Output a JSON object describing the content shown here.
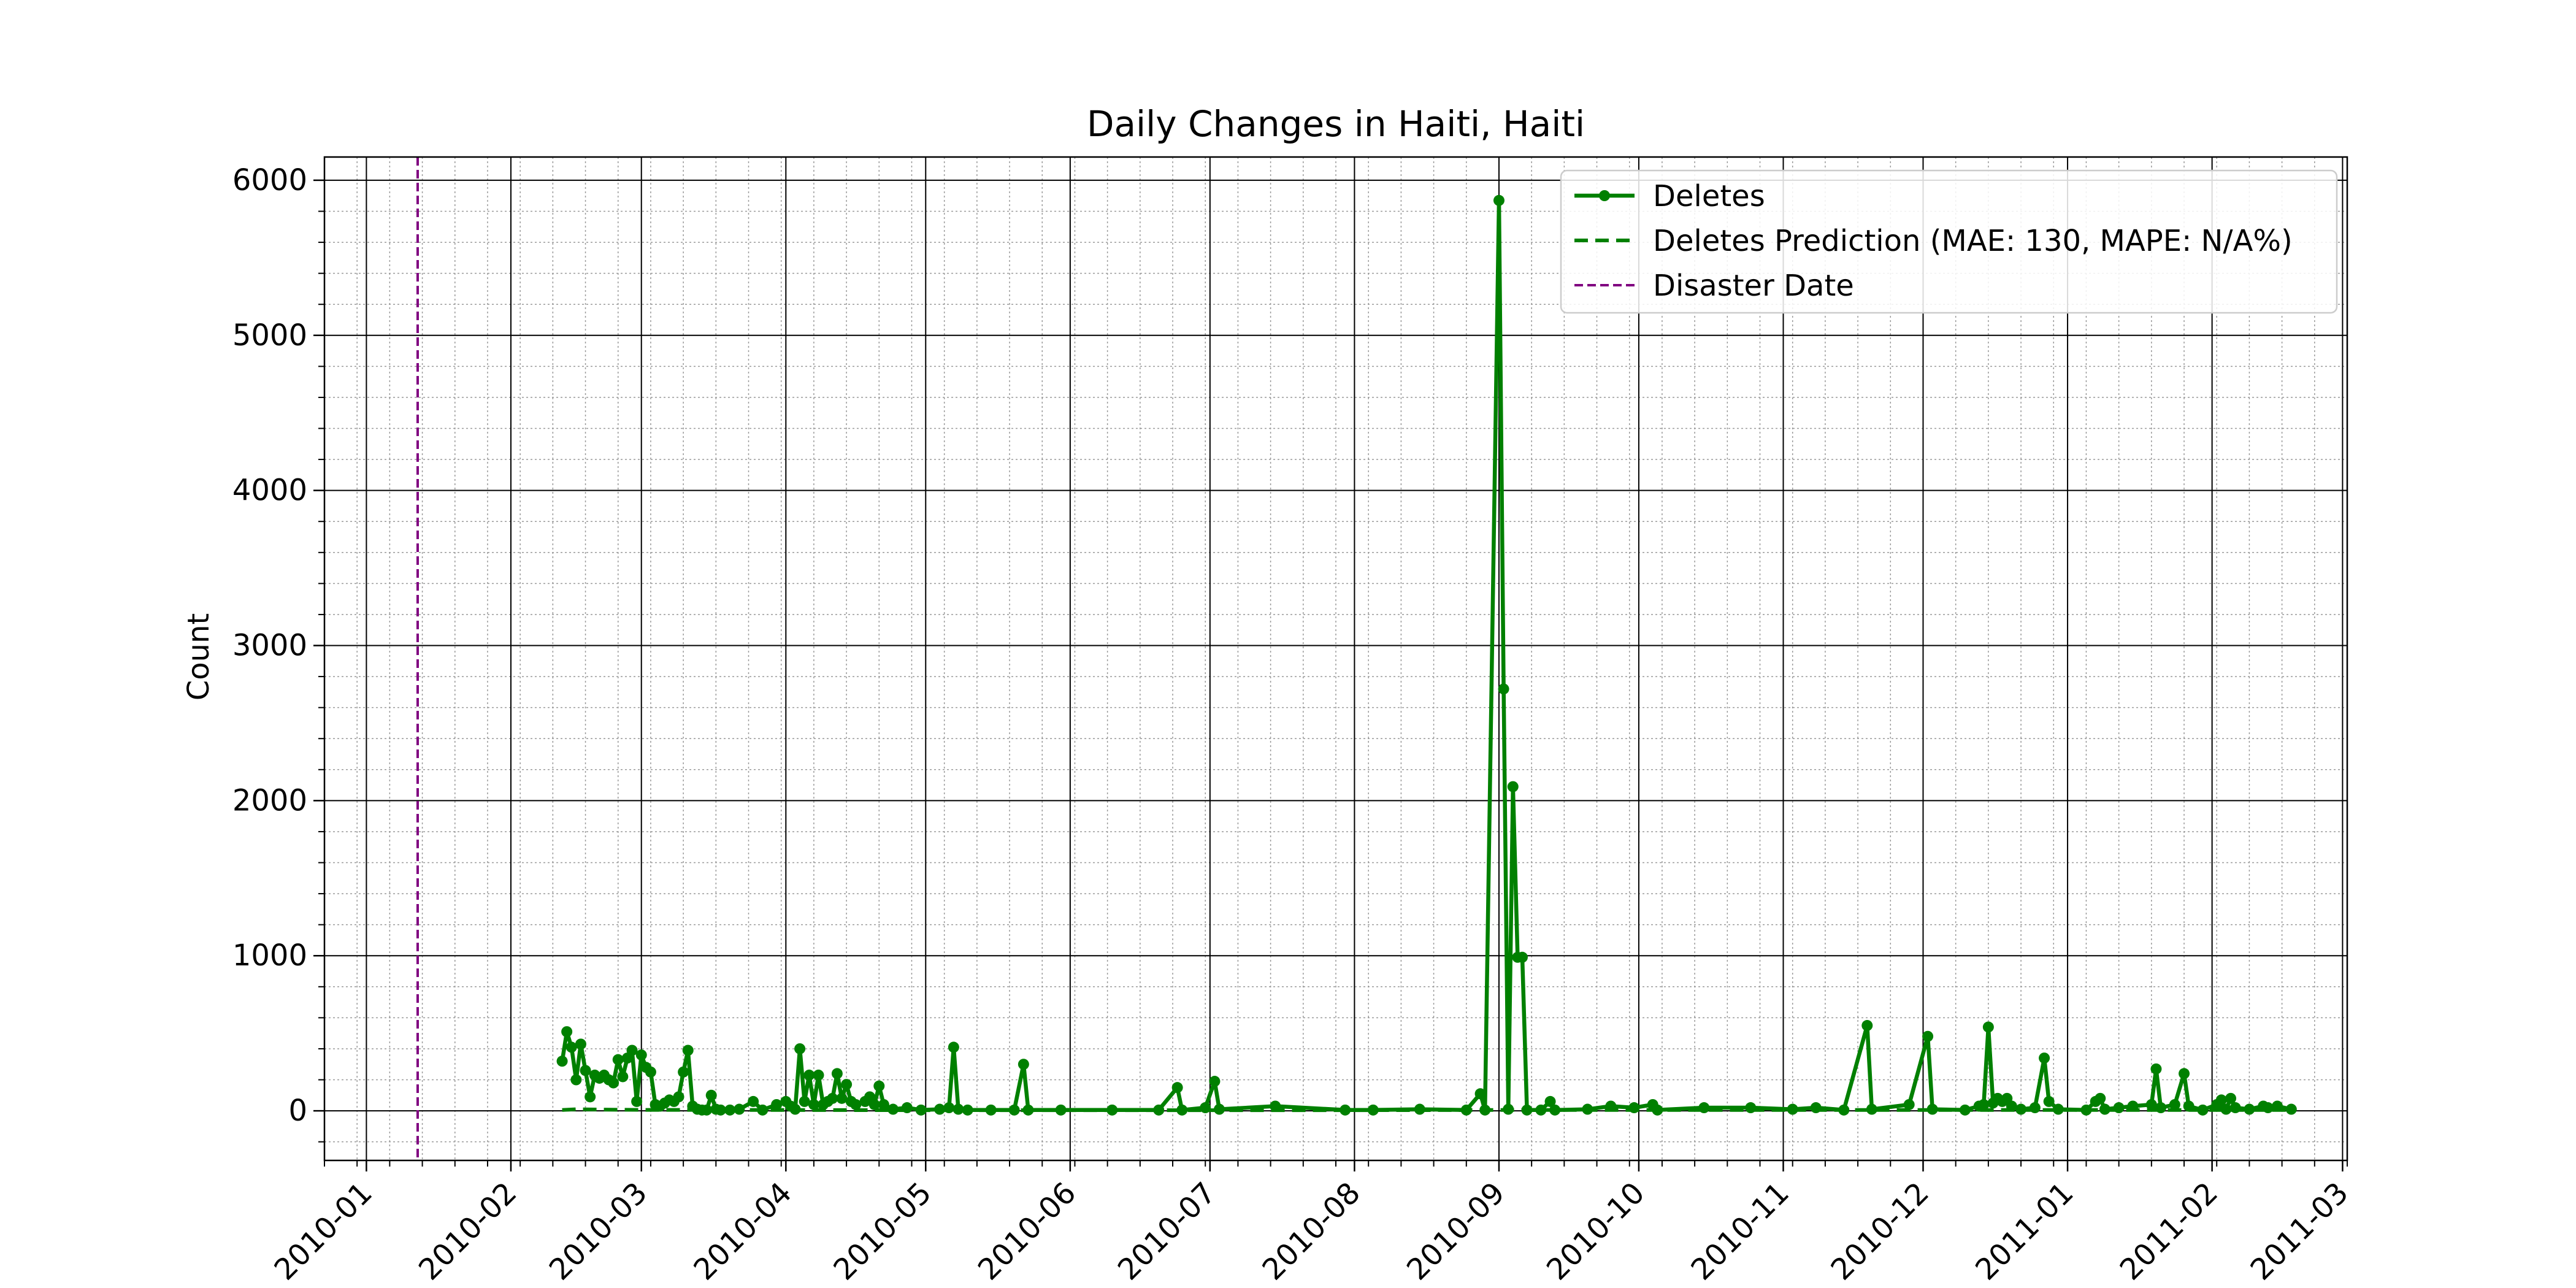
{
  "chart_data": {
    "type": "line",
    "title": "Daily Changes in Haiti, Haiti",
    "xlabel": "",
    "ylabel": "Count",
    "x_ticks": [
      "2010-01",
      "2010-02",
      "2010-03",
      "2010-04",
      "2010-05",
      "2010-06",
      "2010-07",
      "2010-08",
      "2010-09",
      "2010-10",
      "2010-11",
      "2010-12",
      "2011-01",
      "2011-02",
      "2011-03"
    ],
    "y_ticks": [
      0,
      1000,
      2000,
      3000,
      4000,
      5000,
      6000
    ],
    "xlim": [
      "2009-12-23",
      "2011-03-02"
    ],
    "ylim": [
      -320,
      6150
    ],
    "grid": {
      "major": true,
      "minor": true
    },
    "legend_position": "top-right",
    "colors": {
      "series": "#008000",
      "disaster": "#800080",
      "grid_major": "#000000",
      "grid_minor": "#9a9a9a"
    },
    "disaster_date": "2010-01-12",
    "series": [
      {
        "name": "Deletes",
        "style": "solid-with-markers",
        "points": [
          [
            "2010-02-12",
            320
          ],
          [
            "2010-02-13",
            510
          ],
          [
            "2010-02-14",
            410
          ],
          [
            "2010-02-15",
            200
          ],
          [
            "2010-02-16",
            430
          ],
          [
            "2010-02-17",
            260
          ],
          [
            "2010-02-18",
            90
          ],
          [
            "2010-02-19",
            230
          ],
          [
            "2010-02-20",
            210
          ],
          [
            "2010-02-21",
            230
          ],
          [
            "2010-02-22",
            200
          ],
          [
            "2010-02-23",
            180
          ],
          [
            "2010-02-24",
            330
          ],
          [
            "2010-02-25",
            220
          ],
          [
            "2010-02-26",
            340
          ],
          [
            "2010-02-27",
            390
          ],
          [
            "2010-02-28",
            60
          ],
          [
            "2010-03-01",
            360
          ],
          [
            "2010-03-02",
            280
          ],
          [
            "2010-03-03",
            250
          ],
          [
            "2010-03-04",
            40
          ],
          [
            "2010-03-05",
            30
          ],
          [
            "2010-03-06",
            50
          ],
          [
            "2010-03-07",
            70
          ],
          [
            "2010-03-08",
            60
          ],
          [
            "2010-03-09",
            90
          ],
          [
            "2010-03-10",
            250
          ],
          [
            "2010-03-11",
            390
          ],
          [
            "2010-03-12",
            30
          ],
          [
            "2010-03-13",
            10
          ],
          [
            "2010-03-14",
            5
          ],
          [
            "2010-03-15",
            5
          ],
          [
            "2010-03-16",
            100
          ],
          [
            "2010-03-17",
            10
          ],
          [
            "2010-03-18",
            5
          ],
          [
            "2010-03-20",
            5
          ],
          [
            "2010-03-22",
            10
          ],
          [
            "2010-03-25",
            60
          ],
          [
            "2010-03-27",
            5
          ],
          [
            "2010-03-30",
            40
          ],
          [
            "2010-04-01",
            60
          ],
          [
            "2010-04-02",
            30
          ],
          [
            "2010-04-03",
            10
          ],
          [
            "2010-04-04",
            400
          ],
          [
            "2010-04-05",
            60
          ],
          [
            "2010-04-06",
            230
          ],
          [
            "2010-04-07",
            40
          ],
          [
            "2010-04-08",
            230
          ],
          [
            "2010-04-09",
            40
          ],
          [
            "2010-04-10",
            60
          ],
          [
            "2010-04-11",
            80
          ],
          [
            "2010-04-12",
            240
          ],
          [
            "2010-04-13",
            80
          ],
          [
            "2010-04-14",
            170
          ],
          [
            "2010-04-15",
            60
          ],
          [
            "2010-04-16",
            40
          ],
          [
            "2010-04-18",
            60
          ],
          [
            "2010-04-19",
            90
          ],
          [
            "2010-04-20",
            40
          ],
          [
            "2010-04-21",
            160
          ],
          [
            "2010-04-22",
            40
          ],
          [
            "2010-04-24",
            10
          ],
          [
            "2010-04-27",
            20
          ],
          [
            "2010-04-30",
            5
          ],
          [
            "2010-05-04",
            10
          ],
          [
            "2010-05-06",
            20
          ],
          [
            "2010-05-07",
            410
          ],
          [
            "2010-05-08",
            10
          ],
          [
            "2010-05-10",
            5
          ],
          [
            "2010-05-15",
            5
          ],
          [
            "2010-05-20",
            5
          ],
          [
            "2010-05-22",
            300
          ],
          [
            "2010-05-23",
            5
          ],
          [
            "2010-05-30",
            5
          ],
          [
            "2010-06-10",
            5
          ],
          [
            "2010-06-20",
            5
          ],
          [
            "2010-06-24",
            150
          ],
          [
            "2010-06-25",
            5
          ],
          [
            "2010-06-30",
            20
          ],
          [
            "2010-07-02",
            190
          ],
          [
            "2010-07-03",
            10
          ],
          [
            "2010-07-15",
            30
          ],
          [
            "2010-07-30",
            5
          ],
          [
            "2010-08-05",
            5
          ],
          [
            "2010-08-15",
            10
          ],
          [
            "2010-08-25",
            5
          ],
          [
            "2010-08-28",
            110
          ],
          [
            "2010-08-29",
            5
          ],
          [
            "2010-09-01",
            5870
          ],
          [
            "2010-09-02",
            2720
          ],
          [
            "2010-09-03",
            10
          ],
          [
            "2010-09-04",
            2090
          ],
          [
            "2010-09-05",
            990
          ],
          [
            "2010-09-06",
            990
          ],
          [
            "2010-09-07",
            5
          ],
          [
            "2010-09-10",
            5
          ],
          [
            "2010-09-12",
            60
          ],
          [
            "2010-09-13",
            5
          ],
          [
            "2010-09-20",
            10
          ],
          [
            "2010-09-25",
            30
          ],
          [
            "2010-09-30",
            20
          ],
          [
            "2010-10-04",
            40
          ],
          [
            "2010-10-05",
            5
          ],
          [
            "2010-10-15",
            20
          ],
          [
            "2010-10-25",
            20
          ],
          [
            "2010-11-03",
            10
          ],
          [
            "2010-11-08",
            20
          ],
          [
            "2010-11-14",
            5
          ],
          [
            "2010-11-19",
            550
          ],
          [
            "2010-11-20",
            10
          ],
          [
            "2010-11-28",
            40
          ],
          [
            "2010-12-02",
            480
          ],
          [
            "2010-12-03",
            10
          ],
          [
            "2010-12-10",
            5
          ],
          [
            "2010-12-13",
            30
          ],
          [
            "2010-12-14",
            40
          ],
          [
            "2010-12-15",
            540
          ],
          [
            "2010-12-16",
            50
          ],
          [
            "2010-12-17",
            80
          ],
          [
            "2010-12-18",
            60
          ],
          [
            "2010-12-19",
            80
          ],
          [
            "2010-12-20",
            30
          ],
          [
            "2010-12-22",
            10
          ],
          [
            "2010-12-25",
            20
          ],
          [
            "2010-12-27",
            340
          ],
          [
            "2010-12-28",
            60
          ],
          [
            "2010-12-30",
            10
          ],
          [
            "2011-01-05",
            5
          ],
          [
            "2011-01-07",
            60
          ],
          [
            "2011-01-08",
            80
          ],
          [
            "2011-01-09",
            10
          ],
          [
            "2011-01-12",
            20
          ],
          [
            "2011-01-15",
            30
          ],
          [
            "2011-01-19",
            40
          ],
          [
            "2011-01-20",
            270
          ],
          [
            "2011-01-21",
            20
          ],
          [
            "2011-01-24",
            40
          ],
          [
            "2011-01-26",
            240
          ],
          [
            "2011-01-27",
            30
          ],
          [
            "2011-01-30",
            5
          ],
          [
            "2011-02-02",
            40
          ],
          [
            "2011-02-03",
            70
          ],
          [
            "2011-02-04",
            10
          ],
          [
            "2011-02-05",
            80
          ],
          [
            "2011-02-06",
            20
          ],
          [
            "2011-02-09",
            10
          ],
          [
            "2011-02-12",
            30
          ],
          [
            "2011-02-13",
            20
          ],
          [
            "2011-02-15",
            30
          ],
          [
            "2011-02-18",
            10
          ]
        ]
      },
      {
        "name": "Deletes Prediction (MAE: 130, MAPE: N/A%)",
        "style": "dashed",
        "points": [
          [
            "2010-02-12",
            5
          ],
          [
            "2010-02-15",
            10
          ],
          [
            "2010-02-20",
            8
          ],
          [
            "2010-03-01",
            6
          ],
          [
            "2010-04-01",
            5
          ],
          [
            "2010-05-01",
            4
          ],
          [
            "2010-06-01",
            4
          ],
          [
            "2010-07-01",
            4
          ],
          [
            "2010-08-01",
            4
          ],
          [
            "2010-09-01",
            5
          ],
          [
            "2010-10-01",
            5
          ],
          [
            "2010-11-01",
            5
          ],
          [
            "2010-12-01",
            5
          ],
          [
            "2011-01-01",
            5
          ],
          [
            "2011-02-01",
            5
          ],
          [
            "2011-02-18",
            5
          ]
        ]
      }
    ],
    "legend": [
      "Deletes",
      "Deletes Prediction (MAE: 130, MAPE: N/A%)",
      "Disaster Date"
    ]
  }
}
